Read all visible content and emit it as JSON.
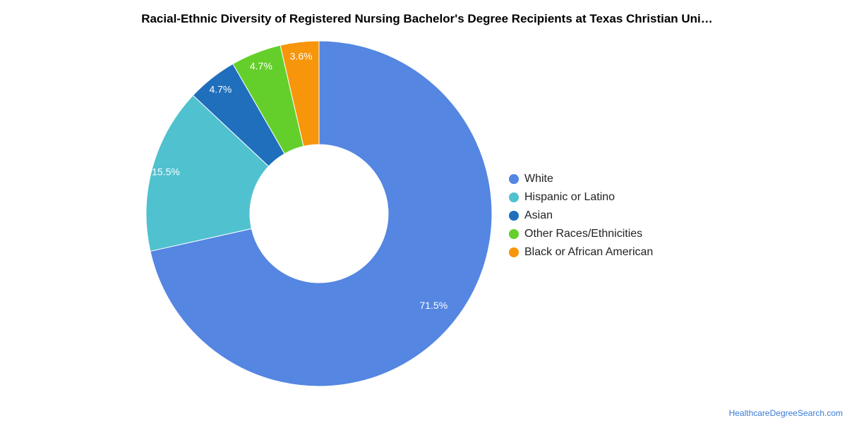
{
  "chart_data": {
    "type": "pie",
    "title": "Racial-Ethnic Diversity of Registered Nursing Bachelor's Degree Recipients at Texas Christian Uni…",
    "donut": true,
    "legend_position": "right",
    "slices": [
      {
        "label": "White",
        "value": 71.5,
        "display": "71.5%",
        "color": "#5486e2"
      },
      {
        "label": "Hispanic or Latino",
        "value": 15.5,
        "display": "15.5%",
        "color": "#50c1cf"
      },
      {
        "label": "Asian",
        "value": 4.7,
        "display": "4.7%",
        "color": "#1f6fbc"
      },
      {
        "label": "Other Races/Ethnicities",
        "value": 4.7,
        "display": "4.7%",
        "color": "#64cf2b"
      },
      {
        "label": "Black or African American",
        "value": 3.6,
        "display": "3.6%",
        "color": "#f7950b"
      }
    ]
  },
  "footer": {
    "source": "HealthcareDegreeSearch.com"
  }
}
